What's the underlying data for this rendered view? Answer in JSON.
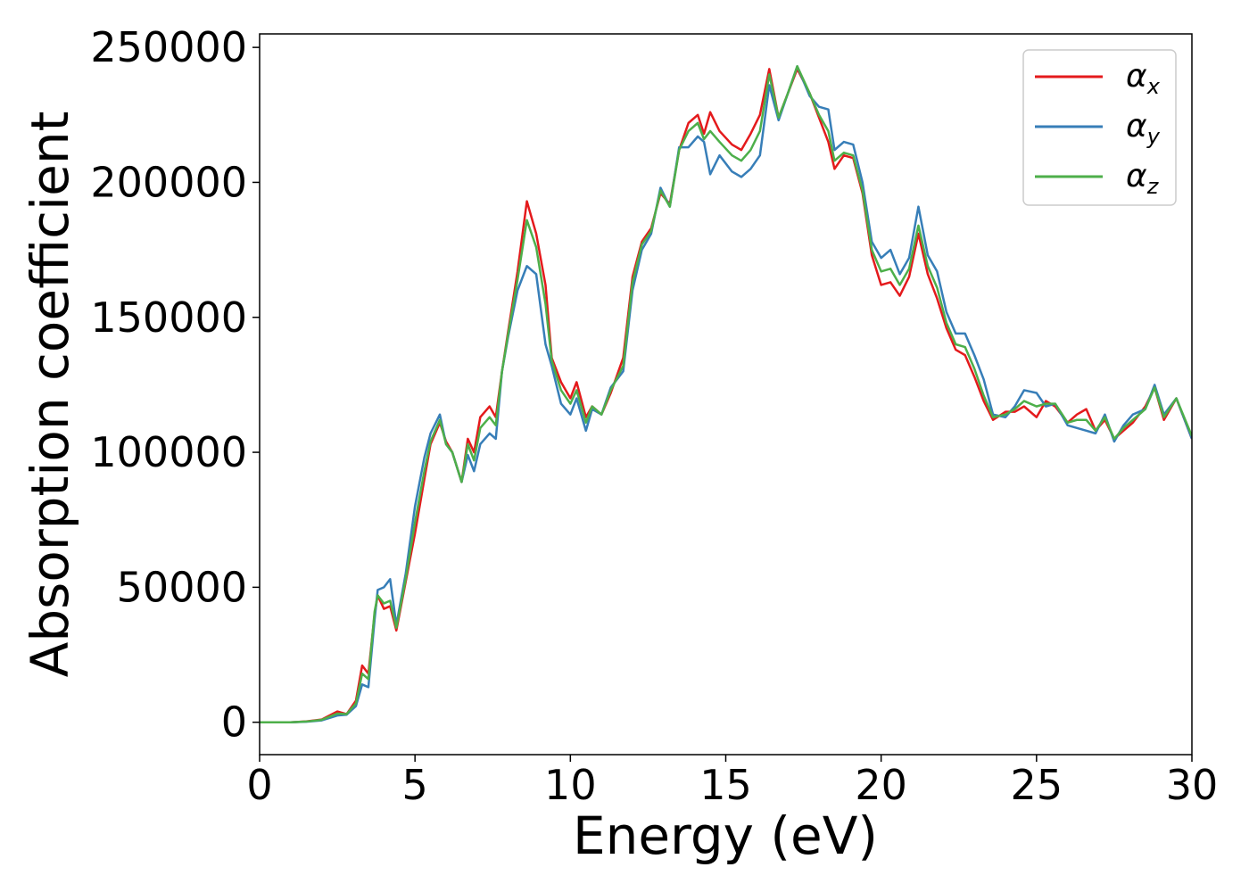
{
  "chart_data": {
    "type": "line",
    "xlabel": "Energy (eV)",
    "ylabel": "Absorption coefficient",
    "xlim": [
      0,
      30
    ],
    "ylim": [
      -12000,
      255000
    ],
    "xticks": [
      0,
      5,
      10,
      15,
      20,
      25,
      30
    ],
    "xtick_labels": [
      "0",
      "5",
      "10",
      "15",
      "20",
      "25",
      "30"
    ],
    "yticks": [
      0,
      50000,
      100000,
      150000,
      200000,
      250000
    ],
    "ytick_labels": [
      "0",
      "50000",
      "100000",
      "150000",
      "200000",
      "250000"
    ],
    "grid": false,
    "legend_position": "top-right",
    "series": [
      {
        "name": "α",
        "subscript": "x",
        "color": "#e41a1c",
        "points": [
          [
            0,
            0
          ],
          [
            1,
            0
          ],
          [
            1.5,
            300
          ],
          [
            2,
            1000
          ],
          [
            2.5,
            4000
          ],
          [
            2.8,
            3000
          ],
          [
            3.1,
            8000
          ],
          [
            3.3,
            21000
          ],
          [
            3.5,
            18000
          ],
          [
            3.7,
            40000
          ],
          [
            3.8,
            47000
          ],
          [
            4.0,
            42000
          ],
          [
            4.2,
            43000
          ],
          [
            4.4,
            34000
          ],
          [
            4.7,
            52000
          ],
          [
            5.0,
            70000
          ],
          [
            5.3,
            90000
          ],
          [
            5.5,
            103000
          ],
          [
            5.8,
            111000
          ],
          [
            6.0,
            104000
          ],
          [
            6.2,
            100000
          ],
          [
            6.5,
            89000
          ],
          [
            6.7,
            105000
          ],
          [
            6.9,
            100000
          ],
          [
            7.1,
            113000
          ],
          [
            7.4,
            117000
          ],
          [
            7.6,
            113000
          ],
          [
            7.8,
            130000
          ],
          [
            8.0,
            145000
          ],
          [
            8.3,
            167000
          ],
          [
            8.6,
            193000
          ],
          [
            8.9,
            181000
          ],
          [
            9.2,
            162000
          ],
          [
            9.4,
            135000
          ],
          [
            9.7,
            126000
          ],
          [
            10.0,
            120000
          ],
          [
            10.2,
            126000
          ],
          [
            10.5,
            113000
          ],
          [
            10.7,
            117000
          ],
          [
            11.0,
            114000
          ],
          [
            11.3,
            122000
          ],
          [
            11.7,
            135000
          ],
          [
            12.0,
            165000
          ],
          [
            12.3,
            178000
          ],
          [
            12.6,
            183000
          ],
          [
            12.9,
            196000
          ],
          [
            13.2,
            192000
          ],
          [
            13.5,
            212000
          ],
          [
            13.8,
            222000
          ],
          [
            14.1,
            225000
          ],
          [
            14.3,
            218000
          ],
          [
            14.5,
            226000
          ],
          [
            14.8,
            219000
          ],
          [
            15.2,
            214000
          ],
          [
            15.5,
            212000
          ],
          [
            15.8,
            218000
          ],
          [
            16.1,
            225000
          ],
          [
            16.4,
            242000
          ],
          [
            16.7,
            224000
          ],
          [
            17.0,
            233000
          ],
          [
            17.3,
            242000
          ],
          [
            17.7,
            233000
          ],
          [
            18.0,
            224000
          ],
          [
            18.3,
            215000
          ],
          [
            18.5,
            205000
          ],
          [
            18.8,
            210000
          ],
          [
            19.1,
            209000
          ],
          [
            19.4,
            196000
          ],
          [
            19.7,
            173000
          ],
          [
            20.0,
            162000
          ],
          [
            20.3,
            163000
          ],
          [
            20.6,
            158000
          ],
          [
            20.9,
            165000
          ],
          [
            21.2,
            181000
          ],
          [
            21.5,
            166000
          ],
          [
            21.8,
            157000
          ],
          [
            22.1,
            146000
          ],
          [
            22.4,
            138000
          ],
          [
            22.7,
            136000
          ],
          [
            23.0,
            128000
          ],
          [
            23.3,
            119000
          ],
          [
            23.6,
            112000
          ],
          [
            24.0,
            115000
          ],
          [
            24.3,
            115000
          ],
          [
            24.6,
            117000
          ],
          [
            25.0,
            113000
          ],
          [
            25.3,
            119000
          ],
          [
            25.6,
            117000
          ],
          [
            26.0,
            111000
          ],
          [
            26.3,
            114000
          ],
          [
            26.6,
            116000
          ],
          [
            26.9,
            108000
          ],
          [
            27.2,
            112000
          ],
          [
            27.5,
            105000
          ],
          [
            27.8,
            108000
          ],
          [
            28.1,
            111000
          ],
          [
            28.5,
            117000
          ],
          [
            28.8,
            124000
          ],
          [
            29.1,
            112000
          ],
          [
            29.5,
            120000
          ],
          [
            30.0,
            105000
          ]
        ]
      },
      {
        "name": "α",
        "subscript": "y",
        "color": "#377eb8",
        "points": [
          [
            0,
            0
          ],
          [
            1,
            0
          ],
          [
            1.5,
            200
          ],
          [
            2,
            700
          ],
          [
            2.5,
            2500
          ],
          [
            2.8,
            2800
          ],
          [
            3.1,
            6000
          ],
          [
            3.3,
            14000
          ],
          [
            3.5,
            13000
          ],
          [
            3.7,
            38000
          ],
          [
            3.8,
            49000
          ],
          [
            4.0,
            50000
          ],
          [
            4.2,
            53000
          ],
          [
            4.4,
            36000
          ],
          [
            4.7,
            55000
          ],
          [
            5.0,
            80000
          ],
          [
            5.3,
            98000
          ],
          [
            5.5,
            107000
          ],
          [
            5.8,
            114000
          ],
          [
            6.0,
            103000
          ],
          [
            6.2,
            100000
          ],
          [
            6.5,
            89000
          ],
          [
            6.7,
            99000
          ],
          [
            6.9,
            93000
          ],
          [
            7.1,
            103000
          ],
          [
            7.4,
            107000
          ],
          [
            7.6,
            105000
          ],
          [
            7.8,
            130000
          ],
          [
            8.0,
            143000
          ],
          [
            8.3,
            160000
          ],
          [
            8.6,
            169000
          ],
          [
            8.9,
            166000
          ],
          [
            9.2,
            140000
          ],
          [
            9.4,
            132000
          ],
          [
            9.7,
            118000
          ],
          [
            10.0,
            114000
          ],
          [
            10.2,
            120000
          ],
          [
            10.5,
            108000
          ],
          [
            10.7,
            116000
          ],
          [
            11.0,
            114000
          ],
          [
            11.3,
            124000
          ],
          [
            11.7,
            130000
          ],
          [
            12.0,
            160000
          ],
          [
            12.3,
            175000
          ],
          [
            12.6,
            181000
          ],
          [
            12.9,
            198000
          ],
          [
            13.2,
            191000
          ],
          [
            13.5,
            213000
          ],
          [
            13.8,
            213000
          ],
          [
            14.1,
            217000
          ],
          [
            14.3,
            215000
          ],
          [
            14.5,
            203000
          ],
          [
            14.8,
            210000
          ],
          [
            15.2,
            204000
          ],
          [
            15.5,
            202000
          ],
          [
            15.8,
            205000
          ],
          [
            16.1,
            210000
          ],
          [
            16.4,
            236000
          ],
          [
            16.7,
            223000
          ],
          [
            17.0,
            233000
          ],
          [
            17.3,
            243000
          ],
          [
            17.7,
            232000
          ],
          [
            18.0,
            228000
          ],
          [
            18.3,
            227000
          ],
          [
            18.5,
            212000
          ],
          [
            18.8,
            215000
          ],
          [
            19.1,
            214000
          ],
          [
            19.4,
            200000
          ],
          [
            19.7,
            178000
          ],
          [
            20.0,
            172000
          ],
          [
            20.3,
            175000
          ],
          [
            20.6,
            166000
          ],
          [
            20.9,
            172000
          ],
          [
            21.2,
            191000
          ],
          [
            21.5,
            173000
          ],
          [
            21.8,
            167000
          ],
          [
            22.1,
            152000
          ],
          [
            22.4,
            144000
          ],
          [
            22.7,
            144000
          ],
          [
            23.0,
            136000
          ],
          [
            23.3,
            127000
          ],
          [
            23.6,
            114000
          ],
          [
            24.0,
            113000
          ],
          [
            24.3,
            117000
          ],
          [
            24.6,
            123000
          ],
          [
            25.0,
            122000
          ],
          [
            25.3,
            117000
          ],
          [
            25.6,
            118000
          ],
          [
            26.0,
            110000
          ],
          [
            26.3,
            109000
          ],
          [
            26.6,
            108000
          ],
          [
            26.9,
            107000
          ],
          [
            27.2,
            114000
          ],
          [
            27.5,
            104000
          ],
          [
            27.8,
            110000
          ],
          [
            28.1,
            114000
          ],
          [
            28.5,
            116000
          ],
          [
            28.8,
            125000
          ],
          [
            29.1,
            114000
          ],
          [
            29.5,
            120000
          ],
          [
            30.0,
            105000
          ]
        ]
      },
      {
        "name": "α",
        "subscript": "z",
        "color": "#4daf4a",
        "points": [
          [
            0,
            0
          ],
          [
            1,
            0
          ],
          [
            1.5,
            250
          ],
          [
            2,
            900
          ],
          [
            2.5,
            3200
          ],
          [
            2.8,
            3000
          ],
          [
            3.1,
            7000
          ],
          [
            3.3,
            18000
          ],
          [
            3.5,
            16000
          ],
          [
            3.7,
            41000
          ],
          [
            3.8,
            47000
          ],
          [
            4.0,
            44000
          ],
          [
            4.2,
            45000
          ],
          [
            4.4,
            35000
          ],
          [
            4.7,
            53000
          ],
          [
            5.0,
            74000
          ],
          [
            5.3,
            93000
          ],
          [
            5.5,
            104000
          ],
          [
            5.8,
            112000
          ],
          [
            6.0,
            103000
          ],
          [
            6.2,
            100000
          ],
          [
            6.5,
            89000
          ],
          [
            6.7,
            103000
          ],
          [
            6.9,
            97000
          ],
          [
            7.1,
            109000
          ],
          [
            7.4,
            113000
          ],
          [
            7.6,
            110000
          ],
          [
            7.8,
            130000
          ],
          [
            8.0,
            144000
          ],
          [
            8.3,
            164000
          ],
          [
            8.6,
            186000
          ],
          [
            8.9,
            176000
          ],
          [
            9.2,
            155000
          ],
          [
            9.4,
            134000
          ],
          [
            9.7,
            123000
          ],
          [
            10.0,
            118000
          ],
          [
            10.2,
            123000
          ],
          [
            10.5,
            111000
          ],
          [
            10.7,
            117000
          ],
          [
            11.0,
            114000
          ],
          [
            11.3,
            123000
          ],
          [
            11.7,
            132000
          ],
          [
            12.0,
            163000
          ],
          [
            12.3,
            177000
          ],
          [
            12.6,
            182000
          ],
          [
            12.9,
            197000
          ],
          [
            13.2,
            191000
          ],
          [
            13.5,
            212000
          ],
          [
            13.8,
            219000
          ],
          [
            14.1,
            222000
          ],
          [
            14.3,
            216000
          ],
          [
            14.5,
            219000
          ],
          [
            14.8,
            215000
          ],
          [
            15.2,
            210000
          ],
          [
            15.5,
            208000
          ],
          [
            15.8,
            212000
          ],
          [
            16.1,
            219000
          ],
          [
            16.4,
            240000
          ],
          [
            16.7,
            224000
          ],
          [
            17.0,
            233000
          ],
          [
            17.3,
            243000
          ],
          [
            17.7,
            233000
          ],
          [
            18.0,
            225000
          ],
          [
            18.3,
            219000
          ],
          [
            18.5,
            208000
          ],
          [
            18.8,
            211000
          ],
          [
            19.1,
            210000
          ],
          [
            19.4,
            197000
          ],
          [
            19.7,
            175000
          ],
          [
            20.0,
            167000
          ],
          [
            20.3,
            168000
          ],
          [
            20.6,
            162000
          ],
          [
            20.9,
            168000
          ],
          [
            21.2,
            184000
          ],
          [
            21.5,
            169000
          ],
          [
            21.8,
            161000
          ],
          [
            22.1,
            148000
          ],
          [
            22.4,
            140000
          ],
          [
            22.7,
            139000
          ],
          [
            23.0,
            131000
          ],
          [
            23.3,
            121000
          ],
          [
            23.6,
            113000
          ],
          [
            24.0,
            114000
          ],
          [
            24.3,
            116000
          ],
          [
            24.6,
            119000
          ],
          [
            25.0,
            117000
          ],
          [
            25.3,
            118000
          ],
          [
            25.6,
            118000
          ],
          [
            26.0,
            111000
          ],
          [
            26.3,
            112000
          ],
          [
            26.6,
            112000
          ],
          [
            26.9,
            108000
          ],
          [
            27.2,
            113000
          ],
          [
            27.5,
            105000
          ],
          [
            27.8,
            109000
          ],
          [
            28.1,
            112000
          ],
          [
            28.5,
            116000
          ],
          [
            28.8,
            124000
          ],
          [
            29.1,
            113000
          ],
          [
            29.5,
            120000
          ],
          [
            30.0,
            106000
          ]
        ]
      }
    ]
  }
}
